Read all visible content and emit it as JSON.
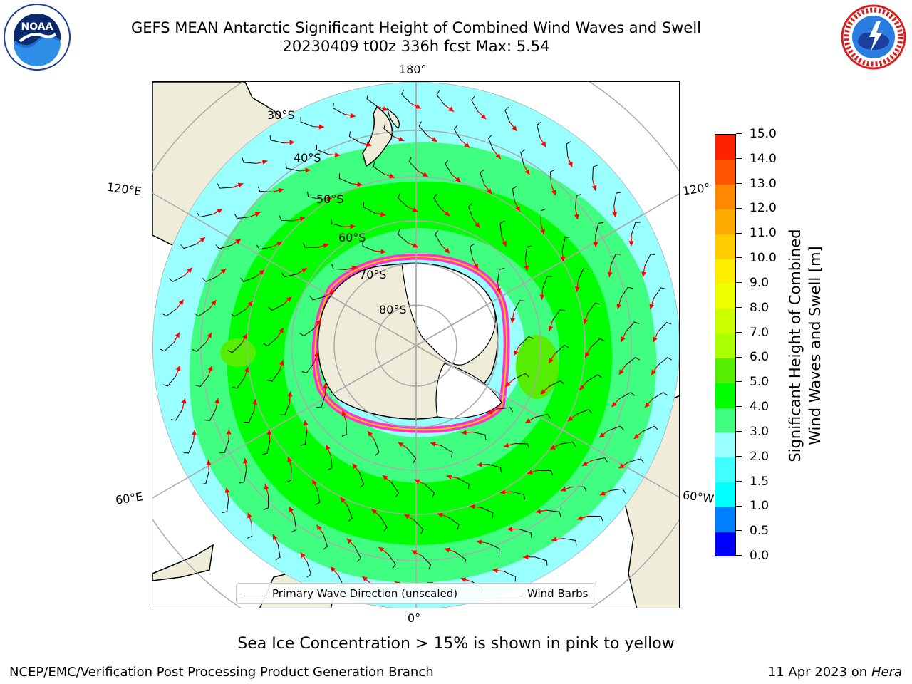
{
  "header": {
    "title_line1": "GEFS MEAN Antarctic Significant Height of Combined Wind Waves and Swell",
    "title_line2": "20230409 t00z 336h fcst   Max: 5.54"
  },
  "logos": {
    "left": "noaa-logo",
    "right": "national-weather-service-logo"
  },
  "map": {
    "projection": "south-polar-stereographic",
    "longitude_labels": {
      "top": "180°",
      "bottom": "0°",
      "upper_left": "120°E",
      "lower_left": "60°E",
      "upper_right": "120°",
      "lower_right": "60°W"
    },
    "latitude_labels": [
      "30°S",
      "40°S",
      "50°S",
      "60°S",
      "70°S",
      "80°S"
    ],
    "max_value_m": 5.54
  },
  "legend": {
    "items": [
      {
        "label": "Primary Wave Direction (unscaled)",
        "color": "#ff0000"
      },
      {
        "label": "Wind Barbs",
        "color": "#000000"
      }
    ]
  },
  "colorbar": {
    "ticks": [
      "0.0",
      "0.5",
      "1.0",
      "1.5",
      "2.0",
      "3.0",
      "4.0",
      "5.0",
      "6.0",
      "7.0",
      "8.0",
      "9.0",
      "10.0",
      "11.0",
      "12.0",
      "13.0",
      "14.0",
      "15.0"
    ],
    "colors": [
      "#0000ff",
      "#0080ff",
      "#00ffff",
      "#40ffff",
      "#99ffff",
      "#40ff80",
      "#00ff00",
      "#55ee00",
      "#aaff00",
      "#ccff00",
      "#eeff00",
      "#ffee00",
      "#ffcc00",
      "#ffaa00",
      "#ff8800",
      "#ff5500",
      "#ff2200"
    ],
    "title_line1": "Significant Height of Combined",
    "title_line2": "Wind Waves and Swell [m]"
  },
  "note": "Sea Ice Concentration > 15% is shown in pink to yellow",
  "footer": {
    "left": "NCEP/EMC/Verification Post Processing Product Generation Branch",
    "date": "11 Apr 2023 on ",
    "machine": "Hera"
  }
}
